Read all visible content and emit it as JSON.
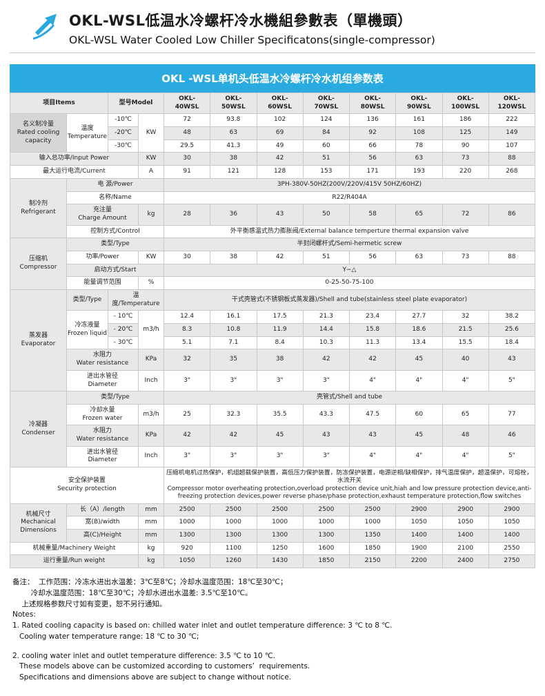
{
  "colors": {
    "accent_blue": "#29abe2",
    "row_shade": "#e8e8e8",
    "category_gray": "#d6d6d6"
  },
  "header": {
    "logo_icon": "arrow-up-right-icon",
    "title_cn": "OKL-WSL低温水冷螺杆冷水機組參數表（單機頭）",
    "title_en": "OKL-WSL Water Cooled Low Chiller Specificatons(single-compressor)"
  },
  "table": {
    "title": "OKL -WSL单机头低温水冷螺杆冷水机组参数表",
    "rows": [
      {
        "shade": 1,
        "cells": [
          {
            "t": "项目Items",
            "cs": 2,
            "cls": "hdr left",
            "n": "col-header-items"
          },
          {
            "t": "型号Model",
            "cs": 2,
            "cls": "hdr",
            "n": "col-header-model"
          },
          {
            "t": "OKL-\n40WSL",
            "cls": "hdr",
            "n": "col-header-okl-40wsl"
          },
          {
            "t": "OKL-\n50WSL",
            "cls": "hdr",
            "n": "col-header-okl-50wsl"
          },
          {
            "t": "OKL-\n60WSL",
            "cls": "hdr",
            "n": "col-header-okl-60wsl"
          },
          {
            "t": "OKL-\n70WSL",
            "cls": "hdr",
            "n": "col-header-okl-70wsl"
          },
          {
            "t": "OKL-\n80WSL",
            "cls": "hdr",
            "n": "col-header-okl-80wsl"
          },
          {
            "t": "OKL-\n90WSL",
            "cls": "hdr",
            "n": "col-header-okl-90wsl"
          },
          {
            "t": "OKL-\n100WSL",
            "cls": "hdr",
            "n": "col-header-okl-100wsl"
          },
          {
            "t": "OKL-\n120WSL",
            "cls": "hdr",
            "n": "col-header-okl-120wsl"
          }
        ]
      },
      {
        "shade": 0,
        "cells": [
          {
            "t": "名义制冷量\nRated cooling\ncapacity",
            "rs": 3,
            "cls": "cat",
            "n": "row-label-rated-cooling-capacity"
          },
          {
            "t": "温度\nTemperature",
            "rs": 3,
            "n": "row-label-temperature"
          },
          {
            "t": "-10℃",
            "n": "temp-label"
          },
          {
            "t": "KW",
            "rs": 3,
            "n": "unit-label"
          },
          {
            "t": "72"
          },
          {
            "t": "93.8"
          },
          {
            "t": "102"
          },
          {
            "t": "124"
          },
          {
            "t": "136"
          },
          {
            "t": "161"
          },
          {
            "t": "186"
          },
          {
            "t": "222"
          }
        ]
      },
      {
        "shade": 1,
        "cells": [
          {
            "t": "-20℃",
            "n": "temp-label"
          },
          {
            "t": "48"
          },
          {
            "t": "63"
          },
          {
            "t": "69"
          },
          {
            "t": "84"
          },
          {
            "t": "92"
          },
          {
            "t": "108"
          },
          {
            "t": "125"
          },
          {
            "t": "149"
          }
        ]
      },
      {
        "shade": 0,
        "cells": [
          {
            "t": "-30℃",
            "n": "temp-label"
          },
          {
            "t": "29.5"
          },
          {
            "t": "41.3"
          },
          {
            "t": "49"
          },
          {
            "t": "60"
          },
          {
            "t": "66"
          },
          {
            "t": "78"
          },
          {
            "t": "90"
          },
          {
            "t": "107"
          }
        ]
      },
      {
        "shade": 1,
        "cells": [
          {
            "t": "输入总功率/Input Power",
            "cs": 3,
            "n": "row-label-input-power"
          },
          {
            "t": "KW",
            "n": "unit-label"
          },
          {
            "t": "30"
          },
          {
            "t": "38"
          },
          {
            "t": "42"
          },
          {
            "t": "51"
          },
          {
            "t": "56"
          },
          {
            "t": "63"
          },
          {
            "t": "73"
          },
          {
            "t": "88"
          }
        ]
      },
      {
        "shade": 0,
        "cells": [
          {
            "t": "最大运行电流/Current",
            "cs": 3,
            "n": "row-label-max-current"
          },
          {
            "t": "A",
            "n": "unit-label"
          },
          {
            "t": "91"
          },
          {
            "t": "121"
          },
          {
            "t": "128"
          },
          {
            "t": "153"
          },
          {
            "t": "171"
          },
          {
            "t": "193"
          },
          {
            "t": "220"
          },
          {
            "t": "268"
          }
        ]
      },
      {
        "shade": 1,
        "cells": [
          {
            "t": "制冷剂\nRefrigerant",
            "rs": 4,
            "cls": "cat",
            "n": "row-label-refrigerant"
          },
          {
            "t": "电  源/Power",
            "cs": 3,
            "n": "row-label-power-supply"
          },
          {
            "t": "3PH-380V-50HZ(200V/220V/415V  50HZ/60HZ)",
            "cs": 8,
            "n": "power-supply-value"
          }
        ]
      },
      {
        "shade": 0,
        "cells": [
          {
            "t": "名称/Name",
            "cs": 3,
            "n": "row-label-refrigerant-name"
          },
          {
            "t": "R22/R404A",
            "cs": 8,
            "n": "refrigerant-name-value"
          }
        ]
      },
      {
        "shade": 1,
        "cells": [
          {
            "t": "充注量\nCharge Amount",
            "cs": 2,
            "n": "row-label-charge-amount"
          },
          {
            "t": "kg",
            "n": "unit-label"
          },
          {
            "t": "28"
          },
          {
            "t": "36"
          },
          {
            "t": "43"
          },
          {
            "t": "50"
          },
          {
            "t": "58"
          },
          {
            "t": "65"
          },
          {
            "t": "72"
          },
          {
            "t": "86"
          }
        ]
      },
      {
        "shade": 0,
        "cells": [
          {
            "t": "控制方式/Control",
            "cs": 3,
            "n": "row-label-control"
          },
          {
            "t": "外平衡感温式热力膨胀阀/External balance temperture thermal expansion valve",
            "cs": 8,
            "n": "control-value"
          }
        ]
      },
      {
        "shade": 1,
        "cells": [
          {
            "t": "压缩机\nCompressor",
            "rs": 4,
            "cls": "cat",
            "n": "row-label-compressor"
          },
          {
            "t": "类型/Type",
            "cs": 3,
            "n": "row-label-compressor-type"
          },
          {
            "t": "半封闭螺杆式/Semi-hermetic screw",
            "cs": 8,
            "n": "compressor-type-value"
          }
        ]
      },
      {
        "shade": 0,
        "cells": [
          {
            "t": "功率/Power",
            "cs": 2,
            "n": "row-label-compressor-power"
          },
          {
            "t": "KW",
            "n": "unit-label"
          },
          {
            "t": "30"
          },
          {
            "t": "38"
          },
          {
            "t": "42"
          },
          {
            "t": "51"
          },
          {
            "t": "56"
          },
          {
            "t": "63"
          },
          {
            "t": "73"
          },
          {
            "t": "88"
          }
        ]
      },
      {
        "shade": 1,
        "cells": [
          {
            "t": "启动方式/Start",
            "cs": 3,
            "n": "row-label-start-mode"
          },
          {
            "t": "Y−△",
            "cs": 8,
            "n": "start-mode-value"
          }
        ]
      },
      {
        "shade": 0,
        "cells": [
          {
            "t": "能量调节范围",
            "cs": 2,
            "n": "row-label-capacity-control-range"
          },
          {
            "t": "%",
            "n": "unit-label"
          },
          {
            "t": "0-25-50-75-100",
            "cs": 8,
            "n": "capacity-control-range-value"
          }
        ]
      },
      {
        "shade": 1,
        "cells": [
          {
            "t": "蒸发器\nEvaporator",
            "rs": 6,
            "cls": "cat",
            "n": "row-label-evaporator"
          },
          {
            "t": "类型/Type",
            "n": "row-label-evaporator-type"
          },
          {
            "t": "温度/Temperature",
            "cs": 2,
            "n": "row-label-evap-temperature"
          },
          {
            "t": "干式壳管式(不锈钢板式蒸发器)/Shell and tube(stainless steel plate evaporator)",
            "cs": 8,
            "n": "evaporator-type-value"
          }
        ]
      },
      {
        "shade": 0,
        "cells": [
          {
            "t": "冷冻液量\nFrozen liquid",
            "rs": 3,
            "n": "row-label-frozen-liquid"
          },
          {
            "t": "- 10℃",
            "n": "temp-label"
          },
          {
            "t": "m3/h",
            "rs": 3,
            "n": "unit-label"
          },
          {
            "t": "12.4"
          },
          {
            "t": "16.1"
          },
          {
            "t": "17.5"
          },
          {
            "t": "21.3"
          },
          {
            "t": "23.4"
          },
          {
            "t": "27.7"
          },
          {
            "t": "32"
          },
          {
            "t": "38.2"
          }
        ]
      },
      {
        "shade": 1,
        "cells": [
          {
            "t": "- 20℃",
            "n": "temp-label"
          },
          {
            "t": "8.3"
          },
          {
            "t": "10.8"
          },
          {
            "t": "11.9"
          },
          {
            "t": "14.4"
          },
          {
            "t": "15.8"
          },
          {
            "t": "18.6"
          },
          {
            "t": "21.5"
          },
          {
            "t": "25.6"
          }
        ]
      },
      {
        "shade": 0,
        "cells": [
          {
            "t": "- 30℃",
            "n": "temp-label"
          },
          {
            "t": "5.1"
          },
          {
            "t": "7.1"
          },
          {
            "t": "8.4"
          },
          {
            "t": "10.3"
          },
          {
            "t": "11.3"
          },
          {
            "t": "13.4"
          },
          {
            "t": "15.5"
          },
          {
            "t": "18.4"
          }
        ]
      },
      {
        "shade": 1,
        "cells": [
          {
            "t": "水阻力\nWater resistance",
            "cs": 2,
            "n": "row-label-evap-water-resistance"
          },
          {
            "t": "KPa",
            "n": "unit-label"
          },
          {
            "t": "32"
          },
          {
            "t": "35"
          },
          {
            "t": "38"
          },
          {
            "t": "42"
          },
          {
            "t": "42"
          },
          {
            "t": "45"
          },
          {
            "t": "40"
          },
          {
            "t": "43"
          }
        ]
      },
      {
        "shade": 0,
        "cells": [
          {
            "t": "进出水管径\nDiameter",
            "cs": 2,
            "n": "row-label-evap-diameter"
          },
          {
            "t": "Inch",
            "n": "unit-label"
          },
          {
            "t": "3\""
          },
          {
            "t": "3\""
          },
          {
            "t": "3\""
          },
          {
            "t": "3\""
          },
          {
            "t": "4\""
          },
          {
            "t": "4\""
          },
          {
            "t": "4\""
          },
          {
            "t": "5\""
          }
        ]
      },
      {
        "shade": 1,
        "cells": [
          {
            "t": "冷凝器\nCondenser",
            "rs": 4,
            "cls": "cat",
            "n": "row-label-condenser"
          },
          {
            "t": "类型/Type",
            "cs": 3,
            "n": "row-label-condenser-type"
          },
          {
            "t": "壳管式/Shell and tube",
            "cs": 8,
            "n": "condenser-type-value"
          }
        ]
      },
      {
        "shade": 0,
        "cells": [
          {
            "t": "冷却水量\nFrozen water",
            "cs": 2,
            "n": "row-label-cooling-water-flow"
          },
          {
            "t": "m3/h",
            "n": "unit-label"
          },
          {
            "t": "25"
          },
          {
            "t": "32.3"
          },
          {
            "t": "35.5"
          },
          {
            "t": "43.3"
          },
          {
            "t": "47.5"
          },
          {
            "t": "60"
          },
          {
            "t": "65"
          },
          {
            "t": "77"
          }
        ]
      },
      {
        "shade": 1,
        "cells": [
          {
            "t": "水阻力\nWater resistance",
            "cs": 2,
            "n": "row-label-cond-water-resistance"
          },
          {
            "t": "KPa",
            "n": "unit-label"
          },
          {
            "t": "42"
          },
          {
            "t": "42"
          },
          {
            "t": "45"
          },
          {
            "t": "43"
          },
          {
            "t": "43"
          },
          {
            "t": "45"
          },
          {
            "t": "48"
          },
          {
            "t": "46"
          }
        ]
      },
      {
        "shade": 0,
        "cells": [
          {
            "t": "进出水管径\nDiameter",
            "cs": 2,
            "n": "row-label-cond-diameter"
          },
          {
            "t": "Inch",
            "n": "unit-label"
          },
          {
            "t": "3\""
          },
          {
            "t": "3\""
          },
          {
            "t": "3\""
          },
          {
            "t": "3\""
          },
          {
            "t": "4\""
          },
          {
            "t": "4\""
          },
          {
            "t": "4\""
          },
          {
            "t": "5\""
          }
        ]
      },
      {
        "shade": 0,
        "cells": [
          {
            "t": "安全保护装置\nSecurity protection",
            "cs": 4,
            "n": "row-label-security-protection"
          },
          {
            "t": "压缩机电机过热保护，机组超载保护装置，高低压力保护装置，防冻保护装置，电源逆相/缺相保护，排气温度保护，超温保护，可熔栓，水流开关\nCompressor motor overheating protection,overload protection device unit,hiah and low pressure protection device,anti-freezing protection devices,power reverse phase/phase protection,exhaust temperature protection,flow switches",
            "cs": 8,
            "cls": "sectext",
            "n": "security-protection-value"
          }
        ]
      },
      {
        "shade": 1,
        "cells": [
          {
            "t": "机械尺寸\nMechanical\nDimensions",
            "rs": 3,
            "cls": "cat",
            "n": "row-label-mechanical-dimensions"
          },
          {
            "t": "长（A）/length",
            "cs": 2,
            "n": "row-label-length"
          },
          {
            "t": "mm",
            "n": "unit-label"
          },
          {
            "t": "2500"
          },
          {
            "t": "2500"
          },
          {
            "t": "2500"
          },
          {
            "t": "2500"
          },
          {
            "t": "2500"
          },
          {
            "t": "2900"
          },
          {
            "t": "2900"
          },
          {
            "t": "2900"
          }
        ]
      },
      {
        "shade": 0,
        "cells": [
          {
            "t": "宽(B)/width",
            "cs": 2,
            "n": "row-label-width"
          },
          {
            "t": "mm",
            "n": "unit-label"
          },
          {
            "t": "1000"
          },
          {
            "t": "1000"
          },
          {
            "t": "1000"
          },
          {
            "t": "1000"
          },
          {
            "t": "1000"
          },
          {
            "t": "1050"
          },
          {
            "t": "1050"
          },
          {
            "t": "1050"
          }
        ]
      },
      {
        "shade": 1,
        "cells": [
          {
            "t": "高(C)/Height",
            "cs": 2,
            "n": "row-label-height"
          },
          {
            "t": "mm",
            "n": "unit-label"
          },
          {
            "t": "1300"
          },
          {
            "t": "1300"
          },
          {
            "t": "1300"
          },
          {
            "t": "1300"
          },
          {
            "t": "1350"
          },
          {
            "t": "1400"
          },
          {
            "t": "1400"
          },
          {
            "t": "1400"
          }
        ]
      },
      {
        "shade": 0,
        "cells": [
          {
            "t": "机械重量/Machinery Weight",
            "cs": 3,
            "n": "row-label-machinery-weight"
          },
          {
            "t": "kg",
            "n": "unit-label"
          },
          {
            "t": "920"
          },
          {
            "t": "1100"
          },
          {
            "t": "1250"
          },
          {
            "t": "1600"
          },
          {
            "t": "1850"
          },
          {
            "t": "1900"
          },
          {
            "t": "2100"
          },
          {
            "t": "2550"
          }
        ]
      },
      {
        "shade": 1,
        "cells": [
          {
            "t": "运行重量/Run weight",
            "cs": 3,
            "n": "row-label-run-weight"
          },
          {
            "t": "kg",
            "n": "unit-label"
          },
          {
            "t": "1050"
          },
          {
            "t": "1260"
          },
          {
            "t": "1430"
          },
          {
            "t": "1850"
          },
          {
            "t": "2150"
          },
          {
            "t": "2200"
          },
          {
            "t": "2400"
          },
          {
            "t": "2750"
          }
        ]
      }
    ]
  },
  "notes": {
    "lines": [
      "备注：  工作范围：冷冻水进出水温差：3℃至8℃；冷却水温度范围：18℃至30℃；",
      "        冷却水温度范围：18℃至30℃；冷却水进出水温差: 3.5℃至10℃。",
      "    上述规格参数尺寸如有变更，恕不另行通知。",
      "Notes:",
      "1. Rated cooling capacity is based on: chilled water inlet and outlet temperature difference: 3 ℃ to 8 ℃.",
      "   Cooling water temperature range: 18 ℃ to 30 ℃;",
      "",
      "2. cooling water inlet and outlet temperature difference: 3.5 ℃ to 10 ℃.",
      "   These models above can be customized according to customers’  requirements.",
      "   Specifications and dimensions above are subject to change without notice."
    ]
  }
}
